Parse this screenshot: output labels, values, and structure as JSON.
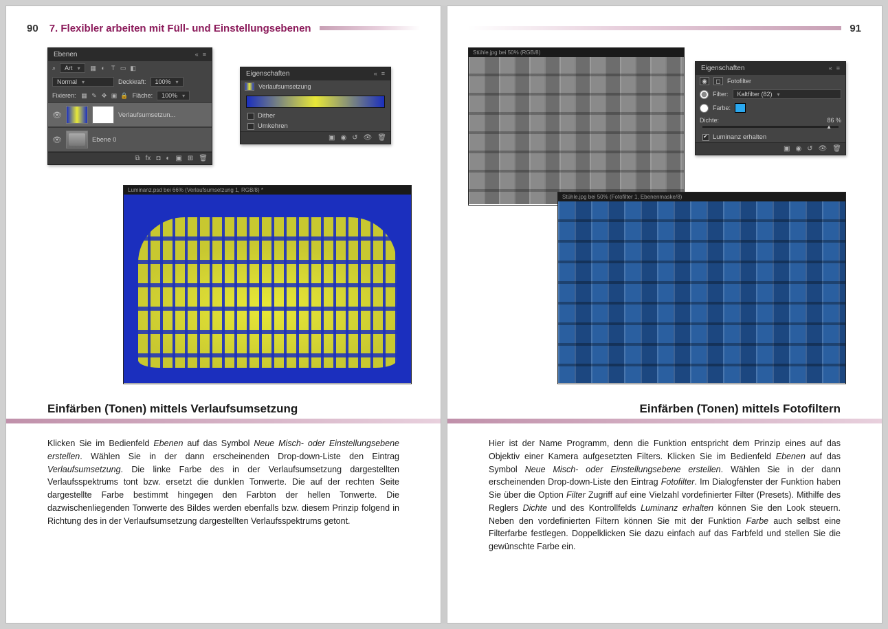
{
  "header": {
    "page_left": "90",
    "page_right": "91",
    "chapter": "7. Flexibler arbeiten mit Füll- und Einstellungsebenen"
  },
  "left_page": {
    "layers_panel": {
      "title": "Ebenen",
      "search_label": "Art",
      "blend_mode": "Normal",
      "opacity_label": "Deckkraft:",
      "opacity_value": "100%",
      "lock_label": "Fixieren:",
      "fill_label": "Fläche:",
      "fill_value": "100%",
      "layer1": "Verlaufsumsetzun...",
      "layer2": "Ebene 0"
    },
    "props_panel": {
      "title": "Eigenschaften",
      "type": "Verlaufsumsetzung",
      "dither": "Dither",
      "invert": "Umkehren",
      "gradient_colors": [
        "#1b2fbe",
        "#e8e838",
        "#1b2fbe"
      ]
    },
    "image_tab": "Luminanz.psd bei 66% (Verlaufsumsetzung 1, RGB/8) *",
    "section_title": "Einfärben (Tonen) mittels Verlaufsumsetzung",
    "body_html": "Klicken Sie im Bedienfeld <em>Ebenen</em> auf das Symbol <em>Neue Misch- oder Einstellungsebene erstellen</em>. Wählen Sie in der dann erscheinenden Drop-down-Liste den Eintrag <em>Verlaufsumsetzung</em>. Die linke Farbe des in der Verlaufsumsetzung dargestellten Verlaufsspektrums tont bzw. ersetzt die dunklen Tonwerte. Die auf der rechten Seite dargestellte Farbe bestimmt hingegen den Farbton der hellen Tonwerte. Die dazwischenliegenden Tonwerte des Bildes werden ebenfalls bzw. diesem Prinzip folgend in Richtung des in der Verlaufsumsetzung dargestellten Verlaufsspektrums getont."
  },
  "right_page": {
    "props_panel": {
      "title": "Eigenschaften",
      "type": "Fotofilter",
      "filter_label": "Filter:",
      "filter_value": "Kaltfilter (82)",
      "color_label": "Farbe:",
      "color_value": "#2aa8ef",
      "density_label": "Dichte:",
      "density_value": "86",
      "density_unit": "%",
      "preserve_label": "Luminanz erhalten"
    },
    "image_tab_gray": "Stühle.jpg bei 50% (RGB/8)",
    "image_tab_blue": "Stühle.jpg bei 50% (Fotofilter 1, Ebenenmaske/8)",
    "section_title": "Einfärben (Tonen) mittels Fotofiltern",
    "body_html": "Hier ist der Name Programm, denn die Funktion entspricht dem Prinzip eines auf das Objektiv einer Kamera aufgesetzten Filters. Klicken Sie im Bedienfeld <em>Ebenen</em> auf das Symbol <em>Neue Misch- oder Einstellungsebene erstellen</em>. Wählen Sie in der dann erscheinenden Drop-down-Liste den Eintrag <em>Fotofilter</em>. Im Dialogfenster der Funktion haben Sie über die Option <em>Filter</em> Zugriff auf eine Vielzahl vordefinierter Filter (Presets). Mithilfe des Reglers <em>Dichte</em> und des Kontrollfelds <em>Luminanz erhalten</em> können Sie den Look steuern. Neben den vordefinierten Filtern können Sie mit der Funktion <em>Farbe</em> auch selbst eine Filterfarbe festlegen. Doppelklicken Sie dazu einfach auf das Farbfeld und stellen Sie die gewünschte Farbe ein."
  }
}
